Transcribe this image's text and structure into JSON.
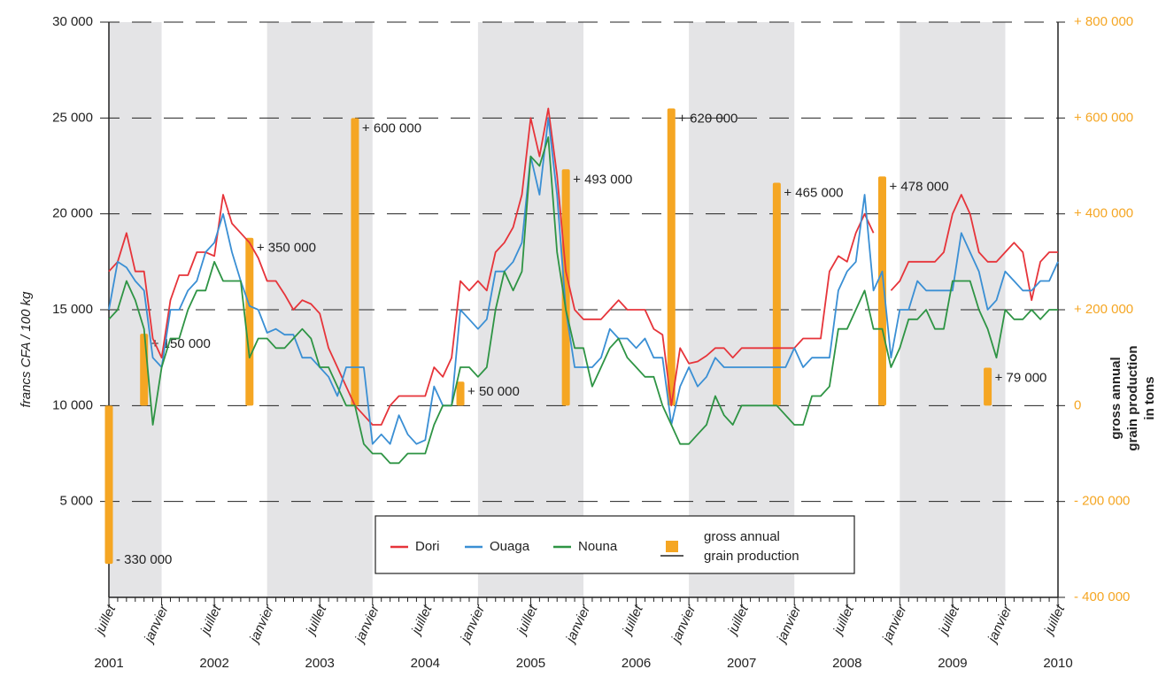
{
  "chart_data": {
    "type": "line",
    "y_label": "francs CFA / 100 kg",
    "y2_label": "gross annual grain production in tons",
    "categories": [
      "juillet",
      null,
      null,
      null,
      null,
      null,
      "janvier",
      null,
      null,
      null,
      null,
      null,
      "juillet",
      null,
      null,
      null,
      null,
      null,
      "janvier",
      null,
      null,
      null,
      null,
      null,
      "juillet",
      null,
      null,
      null,
      null,
      null,
      "janvier",
      null,
      null,
      null,
      null,
      null,
      "juillet",
      null,
      null,
      null,
      null,
      null,
      "janvier",
      null,
      null,
      null,
      null,
      null,
      "juillet",
      null,
      null,
      null,
      null,
      null,
      "janvier",
      null,
      null,
      null,
      null,
      null,
      "juillet",
      null,
      null,
      null,
      null,
      null,
      "janvier",
      null,
      null,
      null,
      null,
      null,
      "juillet",
      null,
      null,
      null,
      null,
      null,
      "janvier",
      null,
      null,
      null,
      null,
      null,
      "juillet",
      null,
      null,
      null,
      null,
      null,
      "janvier",
      null,
      null,
      null,
      null,
      null,
      "juillet",
      null,
      null,
      null,
      null,
      null,
      "janvier",
      null,
      null,
      null,
      null,
      null,
      "juillet"
    ],
    "years": [
      "2001",
      "2002",
      "2003",
      "2004",
      "2005",
      "2006",
      "2007",
      "2008",
      "2009",
      "2010"
    ],
    "series": [
      {
        "name": "Dori",
        "color": "#e6343a",
        "type": "line",
        "values": [
          17000,
          17500,
          19000,
          17000,
          17000,
          13500,
          12500,
          15500,
          16800,
          16800,
          18000,
          18000,
          17800,
          21000,
          19500,
          19000,
          18500,
          17700,
          16500,
          16500,
          15800,
          15000,
          15500,
          15300,
          14800,
          13000,
          12000,
          11000,
          10000,
          9500,
          9000,
          9000,
          10000,
          10500,
          10500,
          10500,
          10500,
          12000,
          11500,
          12500,
          16500,
          16000,
          16500,
          16000,
          18000,
          18500,
          19300,
          21000,
          25000,
          23000,
          25500,
          22000,
          17000,
          15000,
          14500,
          14500,
          14500,
          15000,
          15500,
          15000,
          15000,
          15000,
          14000,
          13700,
          10000,
          13000,
          12200,
          12300,
          12600,
          13000,
          13000,
          12500,
          13000,
          13000,
          13000,
          13000,
          13000,
          13000,
          13000,
          13500,
          13500,
          13500,
          17000,
          17800,
          17500,
          19000,
          20000,
          19000,
          null,
          16000,
          16500,
          17500,
          17500,
          17500,
          17500,
          18000,
          20000,
          21000,
          20000,
          18000,
          17500,
          17500,
          18000,
          18500,
          18000,
          15500,
          17500,
          18000,
          18000
        ]
      },
      {
        "name": "Ouaga",
        "color": "#3a8fd4",
        "type": "line",
        "values": [
          15000,
          17500,
          17200,
          16500,
          16000,
          12500,
          12000,
          15000,
          15000,
          16000,
          16500,
          18000,
          18500,
          20000,
          18000,
          16500,
          15200,
          15000,
          13800,
          14000,
          13700,
          13700,
          12500,
          12500,
          12000,
          11500,
          10500,
          12000,
          12000,
          12000,
          8000,
          8500,
          8000,
          9500,
          8500,
          8000,
          8200,
          11000,
          10000,
          10000,
          15000,
          14500,
          14000,
          14500,
          17000,
          17000,
          17500,
          18500,
          23000,
          21000,
          25000,
          21000,
          15000,
          12000,
          12000,
          12000,
          12500,
          14000,
          13500,
          13500,
          13000,
          13500,
          12500,
          12500,
          9000,
          11000,
          12000,
          11000,
          11500,
          12500,
          12000,
          12000,
          12000,
          12000,
          12000,
          12000,
          12000,
          12000,
          13000,
          12000,
          12500,
          12500,
          12500,
          16000,
          17000,
          17500,
          21000,
          16000,
          17000,
          12500,
          15000,
          15000,
          16500,
          16000,
          16000,
          16000,
          16000,
          19000,
          18000,
          17000,
          15000,
          15500,
          17000,
          16500,
          16000,
          16000,
          16500,
          16500,
          17500
        ]
      },
      {
        "name": "Nouna",
        "color": "#2e9444",
        "type": "line",
        "values": [
          14500,
          15000,
          16500,
          15500,
          14000,
          9000,
          12000,
          13500,
          13500,
          15000,
          16000,
          16000,
          17500,
          16500,
          16500,
          16500,
          12500,
          13500,
          13500,
          13000,
          13000,
          13500,
          14000,
          13500,
          12000,
          12000,
          11000,
          10000,
          10000,
          8000,
          7500,
          7500,
          7000,
          7000,
          7500,
          7500,
          7500,
          9000,
          10000,
          10000,
          12000,
          12000,
          11500,
          12000,
          15000,
          17000,
          16000,
          17000,
          23000,
          22500,
          24000,
          18000,
          15000,
          13000,
          13000,
          11000,
          12000,
          13000,
          13500,
          12500,
          12000,
          11500,
          11500,
          10000,
          9000,
          8000,
          8000,
          8500,
          9000,
          10500,
          9500,
          9000,
          10000,
          10000,
          10000,
          10000,
          10000,
          9500,
          9000,
          9000,
          10500,
          10500,
          11000,
          14000,
          14000,
          15000,
          16000,
          14000,
          14000,
          12000,
          13000,
          14500,
          14500,
          15000,
          14000,
          14000,
          16500,
          16500,
          16500,
          15000,
          14000,
          12500,
          15000,
          14500,
          14500,
          15000,
          14500,
          15000,
          15000
        ]
      },
      {
        "name": "gross annual grain production",
        "color": "#f5a623",
        "type": "bar",
        "axis": "y2",
        "values": [
          -330000,
          null,
          null,
          null,
          150000,
          null,
          null,
          null,
          null,
          null,
          null,
          null,
          null,
          null,
          null,
          null,
          350000,
          null,
          null,
          null,
          null,
          null,
          null,
          null,
          null,
          null,
          null,
          null,
          600000,
          null,
          null,
          null,
          null,
          null,
          null,
          null,
          null,
          null,
          null,
          null,
          50000,
          null,
          null,
          null,
          null,
          null,
          null,
          null,
          null,
          null,
          null,
          null,
          493000,
          null,
          null,
          null,
          null,
          null,
          null,
          null,
          null,
          null,
          null,
          null,
          620000,
          null,
          null,
          null,
          null,
          null,
          null,
          null,
          null,
          null,
          null,
          null,
          465000,
          null,
          null,
          null,
          null,
          null,
          null,
          null,
          null,
          null,
          null,
          null,
          478000,
          null,
          null,
          null,
          null,
          null,
          null,
          null,
          null,
          null,
          null,
          null,
          79000,
          null,
          null,
          null,
          null,
          null,
          null,
          null,
          null
        ],
        "value_labels": [
          "- 330 000",
          null,
          null,
          null,
          "+ 150 000",
          null,
          null,
          null,
          null,
          null,
          null,
          null,
          null,
          null,
          null,
          null,
          "+ 350 000",
          null,
          null,
          null,
          null,
          null,
          null,
          null,
          null,
          null,
          null,
          null,
          "+ 600 000",
          null,
          null,
          null,
          null,
          null,
          null,
          null,
          null,
          null,
          null,
          null,
          "+ 50 000",
          null,
          null,
          null,
          null,
          null,
          null,
          null,
          null,
          null,
          null,
          null,
          "+ 493 000",
          null,
          null,
          null,
          null,
          null,
          null,
          null,
          null,
          null,
          null,
          null,
          "+ 620 000",
          null,
          null,
          null,
          null,
          null,
          null,
          null,
          null,
          null,
          null,
          null,
          "+ 465 000",
          null,
          null,
          null,
          null,
          null,
          null,
          null,
          null,
          null,
          null,
          null,
          "+ 478 000",
          null,
          null,
          null,
          null,
          null,
          null,
          null,
          null,
          null,
          null,
          null,
          "+ 79 000",
          null,
          null,
          null,
          null,
          null,
          null,
          null,
          null
        ]
      }
    ],
    "ylim": [
      0,
      30000
    ],
    "yticks": [
      {
        "value": 5000,
        "label": "5 000"
      },
      {
        "value": 10000,
        "label": "10 000"
      },
      {
        "value": 15000,
        "label": "15 000"
      },
      {
        "value": 20000,
        "label": "20 000"
      },
      {
        "value": 25000,
        "label": "25 000"
      },
      {
        "value": 30000,
        "label": "30 000"
      }
    ],
    "y2lim": [
      -400000,
      800000
    ],
    "y2ticks": [
      {
        "value": -400000,
        "label": "- 400 000"
      },
      {
        "value": -200000,
        "label": "- 200 000"
      },
      0,
      {
        "value": 200000,
        "label": "+ 200 000"
      },
      {
        "value": 400000,
        "label": "+ 400 000"
      },
      {
        "value": 600000,
        "label": "+ 600 000"
      },
      {
        "value": 800000,
        "label": "+ 800 000"
      }
    ],
    "grid": true
  }
}
